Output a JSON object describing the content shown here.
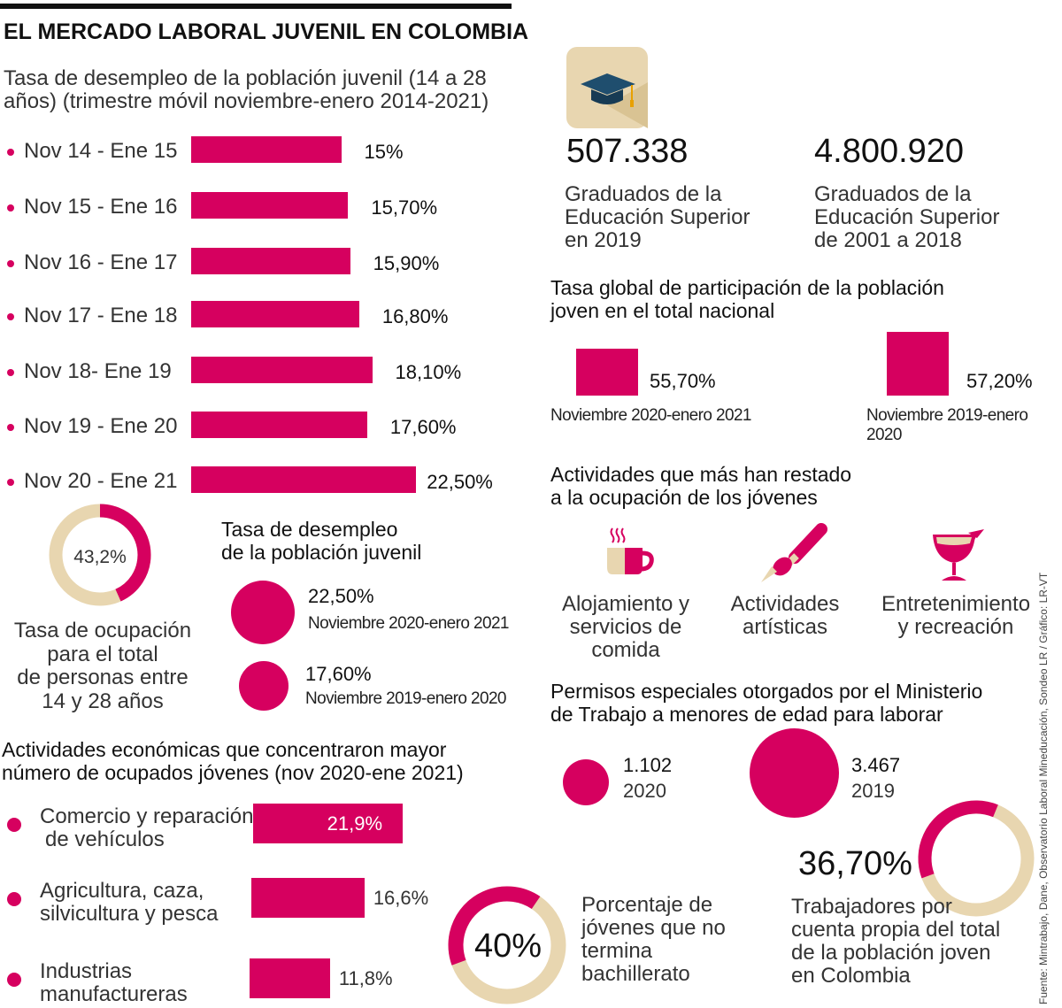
{
  "title": "EL MERCADO LABORAL JUVENIL EN COLOMBIA",
  "colors": {
    "accent": "#d6005f",
    "beige": "#e8d6b0",
    "ink": "#111111"
  },
  "chart_data": [
    {
      "type": "bar",
      "title": "Tasa de desempleo de la población juvenil (14 a 28 años) (trimestre móvil noviembre-enero 2014-2021)",
      "categories": [
        "Nov 14 - Ene 15",
        "Nov 15 - Ene 16",
        "Nov 16 - Ene 17",
        "Nov 17 - Ene 18",
        "Nov 18- Ene 19",
        "Nov 19 - Ene 20",
        "Nov 20 - Ene 21"
      ],
      "values": [
        15,
        15.7,
        15.9,
        16.8,
        18.1,
        17.6,
        22.5
      ],
      "labels": [
        "15%",
        "15,70%",
        "15,90%",
        "16,80%",
        "18,10%",
        "17,60%",
        "22,50%"
      ],
      "orientation": "horizontal"
    },
    {
      "type": "pie",
      "title": "Tasa de ocupación para el total de personas entre 14 y 28 años",
      "value": 43.2,
      "label": "43,2%"
    },
    {
      "type": "bar",
      "title": "Actividades económicas que concentraron mayor número de ocupados jóvenes (nov 2020-ene 2021)",
      "categories": [
        "Comercio y reparación de vehículos",
        "Agricultura, caza, silvicultura y pesca",
        "Industrias manufactureras"
      ],
      "values": [
        21.9,
        16.6,
        11.8
      ],
      "labels": [
        "21,9%",
        "16,6%",
        "11,8%"
      ]
    },
    {
      "type": "pie",
      "title": "Porcentaje de jóvenes que no termina bachillerato",
      "value": 40,
      "label": "40%"
    },
    {
      "type": "pie",
      "title": "Trabajadores por cuenta propia del total de la población joven en Colombia",
      "value": 36.7,
      "label": "36,70%"
    }
  ],
  "unemployment_header": "Tasa de desempleo de la población juvenil (14 a 28 años) (trimestre móvil noviembre-enero 2014-2021)",
  "occupation": {
    "label": "43,2%",
    "caption": [
      "Tasa de ocupación",
      "para el total",
      "de personas entre",
      "14 y 28 años"
    ]
  },
  "youth_unemp": {
    "title": [
      "Tasa de desempleo",
      "de la población juvenil"
    ],
    "items": [
      {
        "value": "22,50%",
        "period": "Noviembre 2020-enero 2021",
        "num": 22.5
      },
      {
        "value": "17,60%",
        "period": "Noviembre 2019-enero 2020",
        "num": 17.6
      }
    ]
  },
  "sectors": {
    "title": [
      "Actividades económicas que concentraron mayor",
      "número de ocupados jóvenes (nov 2020-ene 2021)"
    ],
    "items": [
      {
        "name": [
          "Comercio y reparación",
          "de vehículos"
        ],
        "label": "21,9%"
      },
      {
        "name": [
          "Agricultura, caza,",
          "silvicultura y pesca"
        ],
        "label": "16,6%"
      },
      {
        "name": [
          "Industrias",
          "manufactureras"
        ],
        "label": "11,8%"
      }
    ]
  },
  "dropout": {
    "label": "40%",
    "caption": [
      "Porcentaje de",
      "jóvenes que no",
      "termina",
      "bachillerato"
    ]
  },
  "graduates": [
    {
      "value": "507.338",
      "caption": [
        "Graduados de la",
        "Educación Superior",
        "en 2019"
      ]
    },
    {
      "value": "4.800.920",
      "caption": [
        "Graduados de la",
        "Educación Superior",
        "de 2001 a 2018"
      ]
    }
  ],
  "participation": {
    "title": [
      "Tasa global de participación de la población",
      "joven en el total nacional"
    ],
    "items": [
      {
        "value": "55,70%",
        "period": "Noviembre 2020-enero 2021",
        "num": 55.7
      },
      {
        "value": "57,20%",
        "period": "Noviembre 2019-enero 2020",
        "num": 57.2
      }
    ]
  },
  "activities": {
    "title": [
      "Actividades que más han restado",
      "a la ocupación de los jóvenes"
    ],
    "items": [
      {
        "icon": "coffee-cup-icon",
        "label": [
          "Alojamiento y",
          "servicios de",
          "comida"
        ]
      },
      {
        "icon": "paintbrush-icon",
        "label": [
          "Actividades",
          "artísticas"
        ]
      },
      {
        "icon": "cocktail-icon",
        "label": [
          "Entretenimiento",
          "y recreación"
        ]
      }
    ]
  },
  "permits": {
    "title": [
      "Permisos especiales otorgados por el Ministerio",
      "de Trabajo a menores de edad para laborar"
    ],
    "items": [
      {
        "value": "1.102",
        "year": "2020",
        "num": 1102
      },
      {
        "value": "3.467",
        "year": "2019",
        "num": 3467
      }
    ]
  },
  "self_employed": {
    "label": "36,70%",
    "caption": [
      "Trabajadores por",
      "cuenta propia del total",
      "de la población joven",
      "en Colombia"
    ]
  },
  "source": "Fuente: Mintrabajo, Dane, Observatorio Laboral Mineducación, Sondeo LR / Gráfico: LR-VT"
}
